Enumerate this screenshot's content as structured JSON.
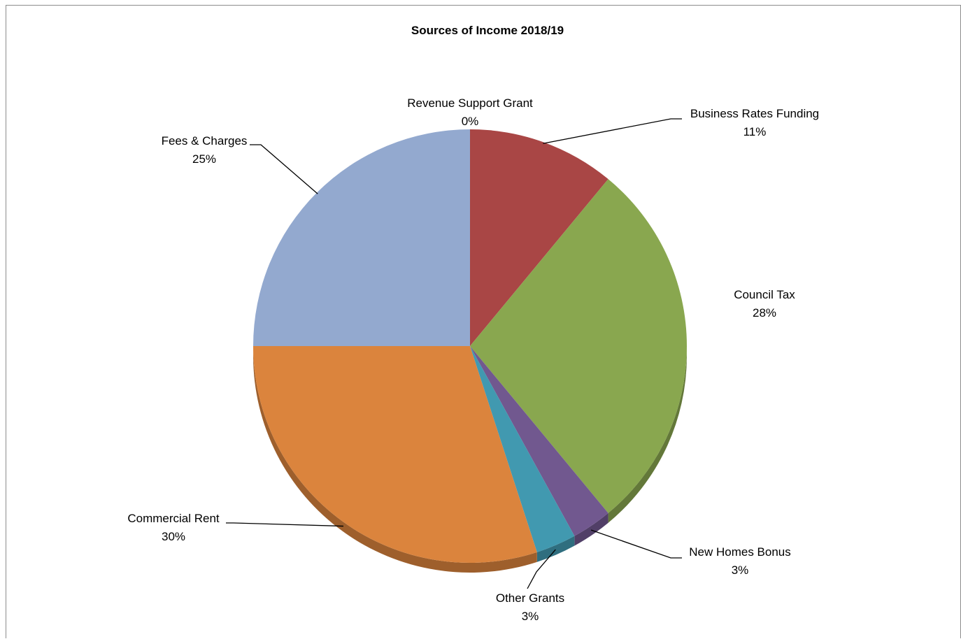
{
  "chart_data": {
    "type": "pie",
    "title": "Sources of Income 2018/19",
    "slices": [
      {
        "name": "Revenue Support Grant",
        "value": 0,
        "label_value": "0%",
        "color": "#4f81bd"
      },
      {
        "name": "Business Rates Funding",
        "value": 11,
        "label_value": "11%",
        "color": "#a94645"
      },
      {
        "name": "Council Tax",
        "value": 28,
        "label_value": "28%",
        "color": "#89a74f"
      },
      {
        "name": "New Homes Bonus",
        "value": 3,
        "label_value": "3%",
        "color": "#71588f"
      },
      {
        "name": "Other Grants",
        "value": 3,
        "label_value": "3%",
        "color": "#4199b0"
      },
      {
        "name": "Commercial Rent",
        "value": 30,
        "label_value": "30%",
        "color": "#db843d"
      },
      {
        "name": "Fees & Charges",
        "value": 25,
        "label_value": "25%",
        "color": "#93a9cf"
      }
    ],
    "start_angle_deg": 0,
    "direction": "clockwise",
    "legend": "none",
    "data_labels": "category name and percentage, outside with leader lines"
  }
}
